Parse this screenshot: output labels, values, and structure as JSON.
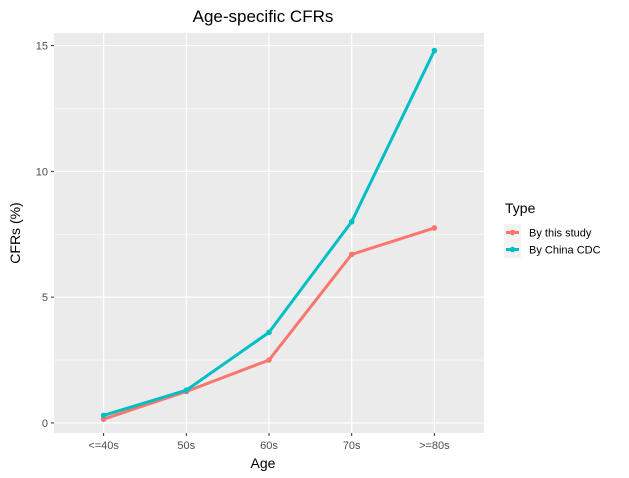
{
  "chart_data": {
    "type": "line",
    "title": "Age-specific CFRs",
    "xlabel": "Age",
    "ylabel": "CFRs (%)",
    "categories": [
      "<=40s",
      "50s",
      "60s",
      "70s",
      ">=80s"
    ],
    "ylim": [
      -0.4,
      15.5
    ],
    "yticks": [
      0,
      5,
      10,
      15
    ],
    "grid": true,
    "legend": {
      "title": "Type",
      "placement": "right"
    },
    "series": [
      {
        "name": "By this study",
        "color": "#F8766D",
        "values": [
          0.15,
          1.25,
          2.5,
          6.7,
          7.75
        ]
      },
      {
        "name": "By China CDC",
        "color": "#00BFC4",
        "values": [
          0.3,
          1.3,
          3.6,
          8.0,
          14.8
        ]
      }
    ]
  }
}
